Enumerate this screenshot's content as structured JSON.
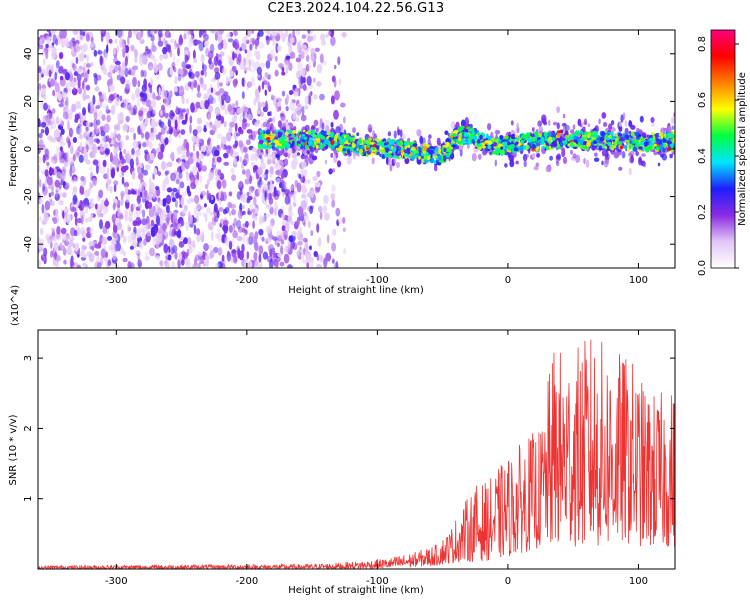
{
  "title": "C2E3.2024.104.22.56.G13",
  "chart_data": [
    {
      "type": "heatmap",
      "xlabel": "Height of straight line (km)",
      "ylabel": "Frequency (Hz)",
      "xlim": [
        -360,
        128
      ],
      "ylim": [
        -50,
        50
      ],
      "xticks": [
        -300,
        -200,
        -100,
        0,
        100
      ],
      "yticks": [
        -40,
        -20,
        0,
        20,
        40
      ],
      "colorbar": {
        "label": "Normalized spectral amplitude",
        "range": [
          0.0,
          0.85
        ],
        "ticks": [
          "0.0",
          "0.2",
          "0.4",
          "0.6",
          "0.8"
        ],
        "colormap": [
          "#ffffff",
          "#e2c6f6",
          "#8a2be2",
          "#1e1eff",
          "#00e5ff",
          "#00ff40",
          "#ffff00",
          "#ff8000",
          "#ff0000",
          "#ff007f"
        ]
      },
      "noise_region_x": [
        -360,
        -135
      ],
      "signal_band": {
        "x": [
          -190,
          -170,
          -150,
          -130,
          -110,
          -90,
          -70,
          -50,
          -40,
          -30,
          -20,
          -10,
          0,
          20,
          40,
          60,
          80,
          100,
          128
        ],
        "center_freq": [
          4,
          4,
          4,
          3,
          1,
          0,
          -1,
          -3,
          5,
          6,
          3,
          1,
          2,
          3,
          4,
          4,
          3,
          3,
          3
        ]
      }
    },
    {
      "type": "line",
      "xlabel": "Height of straight line (km)",
      "ylabel": "SNR (10 * v/v)",
      "y_multiplier": "(x10^4)",
      "xlim": [
        -360,
        128
      ],
      "ylim": [
        0,
        3.4
      ],
      "xticks": [
        -300,
        -200,
        -100,
        0,
        100
      ],
      "yticks": [
        1,
        2,
        3
      ],
      "series_color": "#ee3333",
      "envelope": {
        "x": [
          -360,
          -150,
          -130,
          -110,
          -90,
          -70,
          -55,
          -45,
          -35,
          -25,
          -15,
          -5,
          5,
          15,
          25,
          35,
          45,
          55,
          65,
          75,
          85,
          95,
          105,
          115,
          128
        ],
        "y_max": [
          0.05,
          0.07,
          0.09,
          0.12,
          0.16,
          0.25,
          0.35,
          0.55,
          0.9,
          1.2,
          1.25,
          1.5,
          1.7,
          1.9,
          2.0,
          3.2,
          3.1,
          3.2,
          3.4,
          3.2,
          3.1,
          3.0,
          2.6,
          2.5,
          2.6
        ],
        "y_min": [
          0.0,
          0.0,
          0.0,
          0.0,
          0.01,
          0.03,
          0.05,
          0.08,
          0.1,
          0.1,
          0.12,
          0.15,
          0.2,
          0.25,
          0.3,
          0.3,
          0.35,
          0.3,
          0.3,
          0.3,
          0.35,
          0.35,
          0.3,
          0.3,
          0.3
        ]
      }
    }
  ]
}
